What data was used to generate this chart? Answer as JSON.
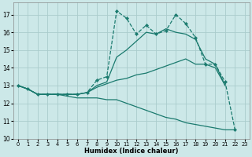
{
  "xlabel": "Humidex (Indice chaleur)",
  "bg_color": "#cce8e8",
  "grid_color": "#aacccc",
  "line_color": "#1a7a6e",
  "xlim_min": -0.5,
  "xlim_max": 23.5,
  "ylim_min": 10,
  "ylim_max": 17.7,
  "yticks": [
    10,
    11,
    12,
    13,
    14,
    15,
    16,
    17
  ],
  "xticks": [
    0,
    1,
    2,
    3,
    4,
    5,
    6,
    7,
    8,
    9,
    10,
    11,
    12,
    13,
    14,
    15,
    16,
    17,
    18,
    19,
    20,
    21,
    22,
    23
  ],
  "series": [
    {
      "x": [
        0,
        1,
        2,
        3,
        4,
        5,
        6,
        7,
        8,
        9,
        10,
        11,
        12,
        13,
        14,
        15,
        16,
        17,
        18,
        19,
        20,
        21
      ],
      "y": [
        13.0,
        12.8,
        12.5,
        12.5,
        12.5,
        12.5,
        12.5,
        12.6,
        12.9,
        13.1,
        13.3,
        13.4,
        13.6,
        13.7,
        13.9,
        14.1,
        14.3,
        14.5,
        14.2,
        14.2,
        14.0,
        13.0
      ],
      "marker": false,
      "linestyle": "-",
      "linewidth": 0.9
    },
    {
      "x": [
        0,
        1,
        2,
        3,
        4,
        5,
        6,
        7,
        8,
        9,
        10,
        11,
        12,
        13,
        14,
        15,
        16,
        17,
        18,
        19,
        20,
        21
      ],
      "y": [
        13.0,
        12.8,
        12.5,
        12.5,
        12.5,
        12.5,
        12.5,
        12.6,
        13.0,
        13.2,
        14.6,
        15.0,
        15.5,
        16.0,
        15.9,
        16.2,
        16.0,
        15.9,
        15.6,
        14.5,
        14.2,
        13.0
      ],
      "marker": false,
      "linestyle": "-",
      "linewidth": 0.9
    },
    {
      "x": [
        0,
        1,
        2,
        3,
        4,
        5,
        6,
        7,
        8,
        9,
        10,
        11,
        12,
        13,
        14,
        15,
        16,
        17,
        18,
        19,
        20,
        21,
        22
      ],
      "y": [
        13.0,
        12.8,
        12.5,
        12.5,
        12.5,
        12.4,
        12.3,
        12.3,
        12.3,
        12.2,
        12.2,
        12.0,
        11.8,
        11.6,
        11.4,
        11.2,
        11.1,
        10.9,
        10.8,
        10.7,
        10.6,
        10.5,
        10.5
      ],
      "marker": false,
      "linestyle": "-",
      "linewidth": 0.9
    },
    {
      "x": [
        0,
        1,
        2,
        3,
        4,
        5,
        6,
        7,
        8,
        9,
        10,
        11,
        12,
        13,
        14,
        15,
        16,
        17,
        18,
        19,
        20,
        21,
        22
      ],
      "y": [
        13.0,
        12.8,
        12.5,
        12.5,
        12.5,
        12.5,
        12.5,
        12.6,
        13.3,
        13.5,
        17.2,
        16.8,
        15.9,
        16.4,
        15.9,
        16.1,
        17.0,
        16.5,
        15.7,
        14.2,
        14.2,
        13.2,
        10.5
      ],
      "marker": true,
      "linestyle": "--",
      "linewidth": 0.9
    }
  ]
}
